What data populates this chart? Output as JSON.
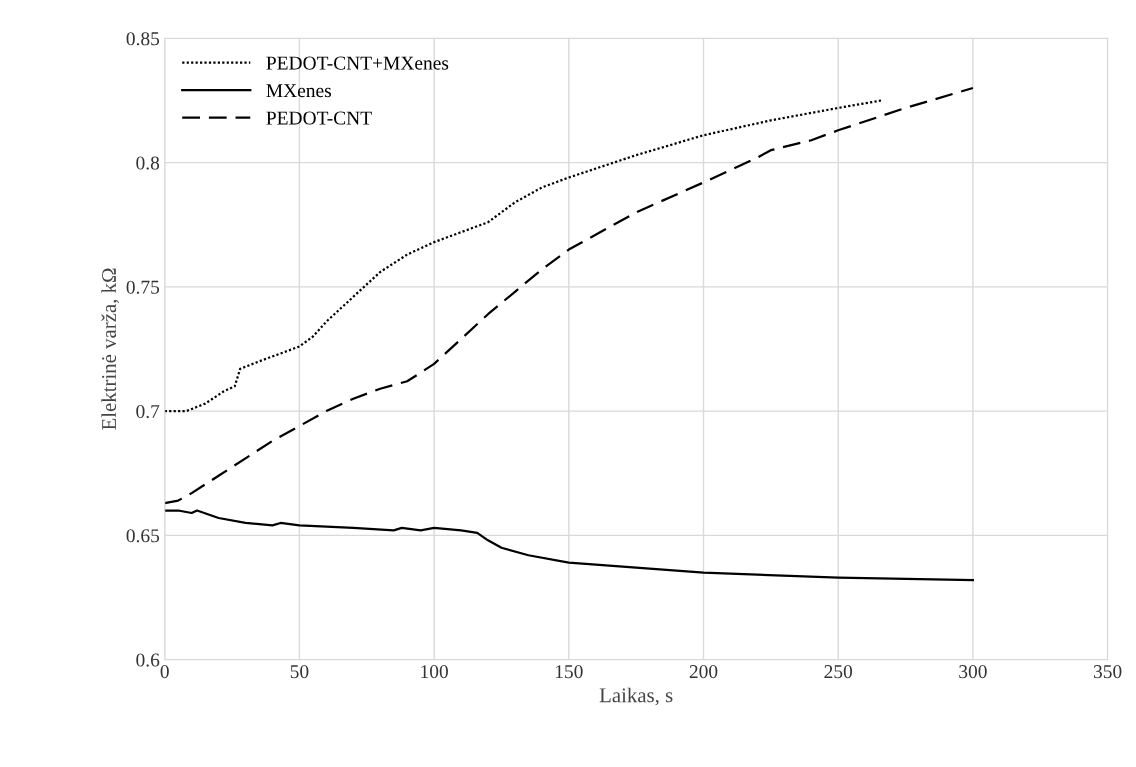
{
  "chart_data": {
    "type": "line",
    "xlabel": "Laikas, s",
    "ylabel": "Elektrinė varža, kΩ",
    "xlim": [
      0,
      350
    ],
    "xticks": [
      0,
      50,
      100,
      150,
      200,
      250,
      300,
      350
    ],
    "ylim": [
      0.6,
      0.85
    ],
    "yticks": [
      0.6,
      0.65,
      0.7,
      0.75,
      0.8,
      0.85
    ],
    "grid": true,
    "legend": "top left",
    "marker": "none",
    "series": [
      {
        "name": "PEDOT-CNT+MXenes",
        "color": "#000000",
        "line_style": "dotted",
        "x": [
          0,
          8,
          15,
          22,
          26,
          28,
          35,
          45,
          50,
          55,
          60,
          70,
          80,
          90,
          100,
          110,
          120,
          130,
          140,
          150,
          175,
          200,
          225,
          250,
          266
        ],
        "values": [
          0.7,
          0.7,
          0.703,
          0.708,
          0.71,
          0.717,
          0.72,
          0.724,
          0.726,
          0.73,
          0.736,
          0.746,
          0.756,
          0.763,
          0.768,
          0.772,
          0.776,
          0.784,
          0.79,
          0.794,
          0.803,
          0.811,
          0.817,
          0.822,
          0.825
        ]
      },
      {
        "name": "MXenes",
        "color": "#000000",
        "line_style": "solid",
        "x": [
          0,
          5,
          10,
          12,
          20,
          30,
          40,
          43,
          50,
          70,
          85,
          88,
          95,
          100,
          110,
          116,
          120,
          125,
          135,
          150,
          175,
          200,
          250,
          300
        ],
        "values": [
          0.66,
          0.66,
          0.659,
          0.66,
          0.657,
          0.655,
          0.654,
          0.655,
          0.654,
          0.653,
          0.652,
          0.653,
          0.652,
          0.653,
          0.652,
          0.651,
          0.648,
          0.645,
          0.642,
          0.639,
          0.637,
          0.635,
          0.633,
          0.632
        ]
      },
      {
        "name": "PEDOT-CNT",
        "color": "#000000",
        "line_style": "dashed",
        "x": [
          0,
          5,
          10,
          20,
          30,
          40,
          50,
          60,
          70,
          80,
          90,
          100,
          110,
          120,
          130,
          140,
          150,
          175,
          200,
          220,
          225,
          240,
          250,
          275,
          300
        ],
        "values": [
          0.663,
          0.664,
          0.667,
          0.674,
          0.681,
          0.688,
          0.694,
          0.7,
          0.705,
          0.709,
          0.712,
          0.719,
          0.729,
          0.739,
          0.748,
          0.757,
          0.765,
          0.78,
          0.792,
          0.802,
          0.805,
          0.809,
          0.813,
          0.822,
          0.83
        ]
      }
    ]
  }
}
